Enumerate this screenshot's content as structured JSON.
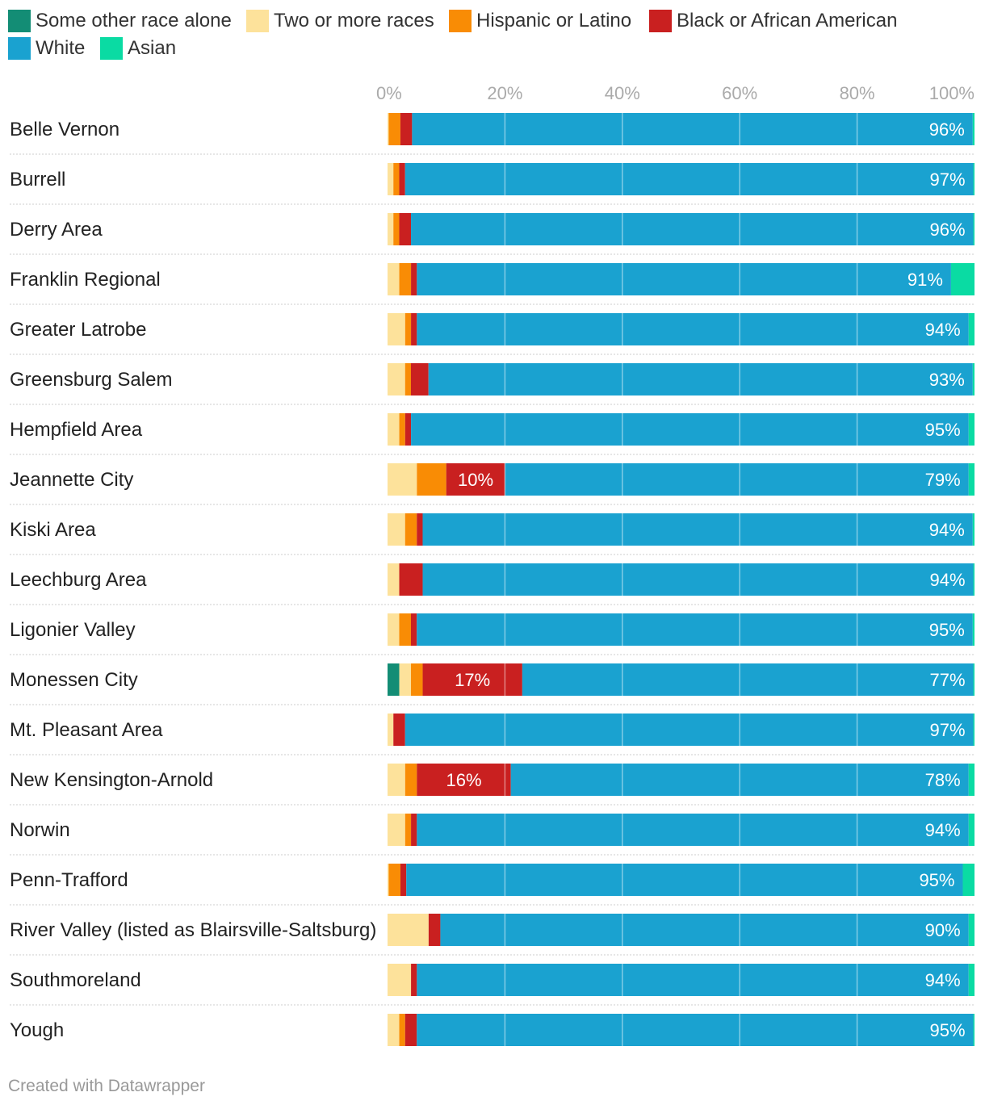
{
  "chart_data": {
    "type": "bar",
    "orientation": "horizontal",
    "stacked": true,
    "xlim": [
      0,
      100
    ],
    "ticks": [
      "0%",
      "20%",
      "40%",
      "60%",
      "80%",
      "100%"
    ],
    "tick_values": [
      0,
      20,
      40,
      60,
      80,
      100
    ],
    "legend_position": "top",
    "series": [
      {
        "name": "Some other race alone",
        "color": "#138d75"
      },
      {
        "name": "Two or more races",
        "color": "#fde29b"
      },
      {
        "name": "Hispanic or Latino",
        "color": "#f98c05"
      },
      {
        "name": "Black or African American",
        "color": "#c92020"
      },
      {
        "name": "White",
        "color": "#1aa2d0"
      },
      {
        "name": "Asian",
        "color": "#0adba3"
      }
    ],
    "categories": [
      "Belle Vernon",
      "Burrell",
      "Derry Area",
      "Franklin Regional",
      "Greater Latrobe",
      "Greensburg Salem",
      "Hempfield Area",
      "Jeannette City",
      "Kiski Area",
      "Leechburg Area",
      "Ligonier Valley",
      "Monessen City",
      "Mt. Pleasant Area",
      "New Kensington-Arnold",
      "Norwin",
      "Penn-Trafford",
      "River Valley (listed as Blairsville-Saltsburg)",
      "Southmoreland",
      "Yough"
    ],
    "values": [
      [
        0,
        0.2,
        2,
        2,
        96,
        0.3
      ],
      [
        0,
        1,
        1,
        1,
        97,
        0.2
      ],
      [
        0,
        1,
        1,
        2,
        96,
        0.2
      ],
      [
        0,
        2,
        2,
        1,
        91,
        4
      ],
      [
        0,
        3,
        1,
        1,
        94,
        1
      ],
      [
        0,
        3,
        1,
        3,
        93,
        0.3
      ],
      [
        0,
        2,
        1,
        1,
        95,
        1
      ],
      [
        0,
        5,
        5,
        10,
        79,
        1
      ],
      [
        0,
        3,
        2,
        1,
        94,
        0.3
      ],
      [
        0,
        2,
        0,
        4,
        94,
        0.2
      ],
      [
        0,
        2,
        2,
        1,
        95,
        0.3
      ],
      [
        2,
        2,
        2,
        17,
        77,
        0.2
      ],
      [
        0,
        1,
        0,
        2,
        97,
        0.2
      ],
      [
        0,
        3,
        2,
        16,
        78,
        1
      ],
      [
        0,
        3,
        1,
        1,
        94,
        1
      ],
      [
        0,
        0.2,
        2,
        1,
        95,
        2
      ],
      [
        0,
        7,
        0,
        2,
        90,
        1
      ],
      [
        0,
        4,
        0,
        1,
        94,
        1
      ],
      [
        0,
        2,
        1,
        2,
        95,
        0.2
      ]
    ],
    "data_labels": [
      {
        "row": 0,
        "series": 4,
        "text": "96%"
      },
      {
        "row": 1,
        "series": 4,
        "text": "97%"
      },
      {
        "row": 2,
        "series": 4,
        "text": "96%"
      },
      {
        "row": 3,
        "series": 4,
        "text": "91%"
      },
      {
        "row": 4,
        "series": 4,
        "text": "94%"
      },
      {
        "row": 5,
        "series": 4,
        "text": "93%"
      },
      {
        "row": 6,
        "series": 4,
        "text": "95%"
      },
      {
        "row": 7,
        "series": 3,
        "text": "10%"
      },
      {
        "row": 7,
        "series": 4,
        "text": "79%"
      },
      {
        "row": 8,
        "series": 4,
        "text": "94%"
      },
      {
        "row": 9,
        "series": 4,
        "text": "94%"
      },
      {
        "row": 10,
        "series": 4,
        "text": "95%"
      },
      {
        "row": 11,
        "series": 3,
        "text": "17%"
      },
      {
        "row": 11,
        "series": 4,
        "text": "77%"
      },
      {
        "row": 12,
        "series": 4,
        "text": "97%"
      },
      {
        "row": 13,
        "series": 3,
        "text": "16%"
      },
      {
        "row": 13,
        "series": 4,
        "text": "78%"
      },
      {
        "row": 14,
        "series": 4,
        "text": "94%"
      },
      {
        "row": 15,
        "series": 4,
        "text": "95%"
      },
      {
        "row": 16,
        "series": 4,
        "text": "90%"
      },
      {
        "row": 17,
        "series": 4,
        "text": "94%"
      },
      {
        "row": 18,
        "series": 4,
        "text": "95%"
      }
    ]
  },
  "footer": {
    "credit": "Created with Datawrapper"
  }
}
